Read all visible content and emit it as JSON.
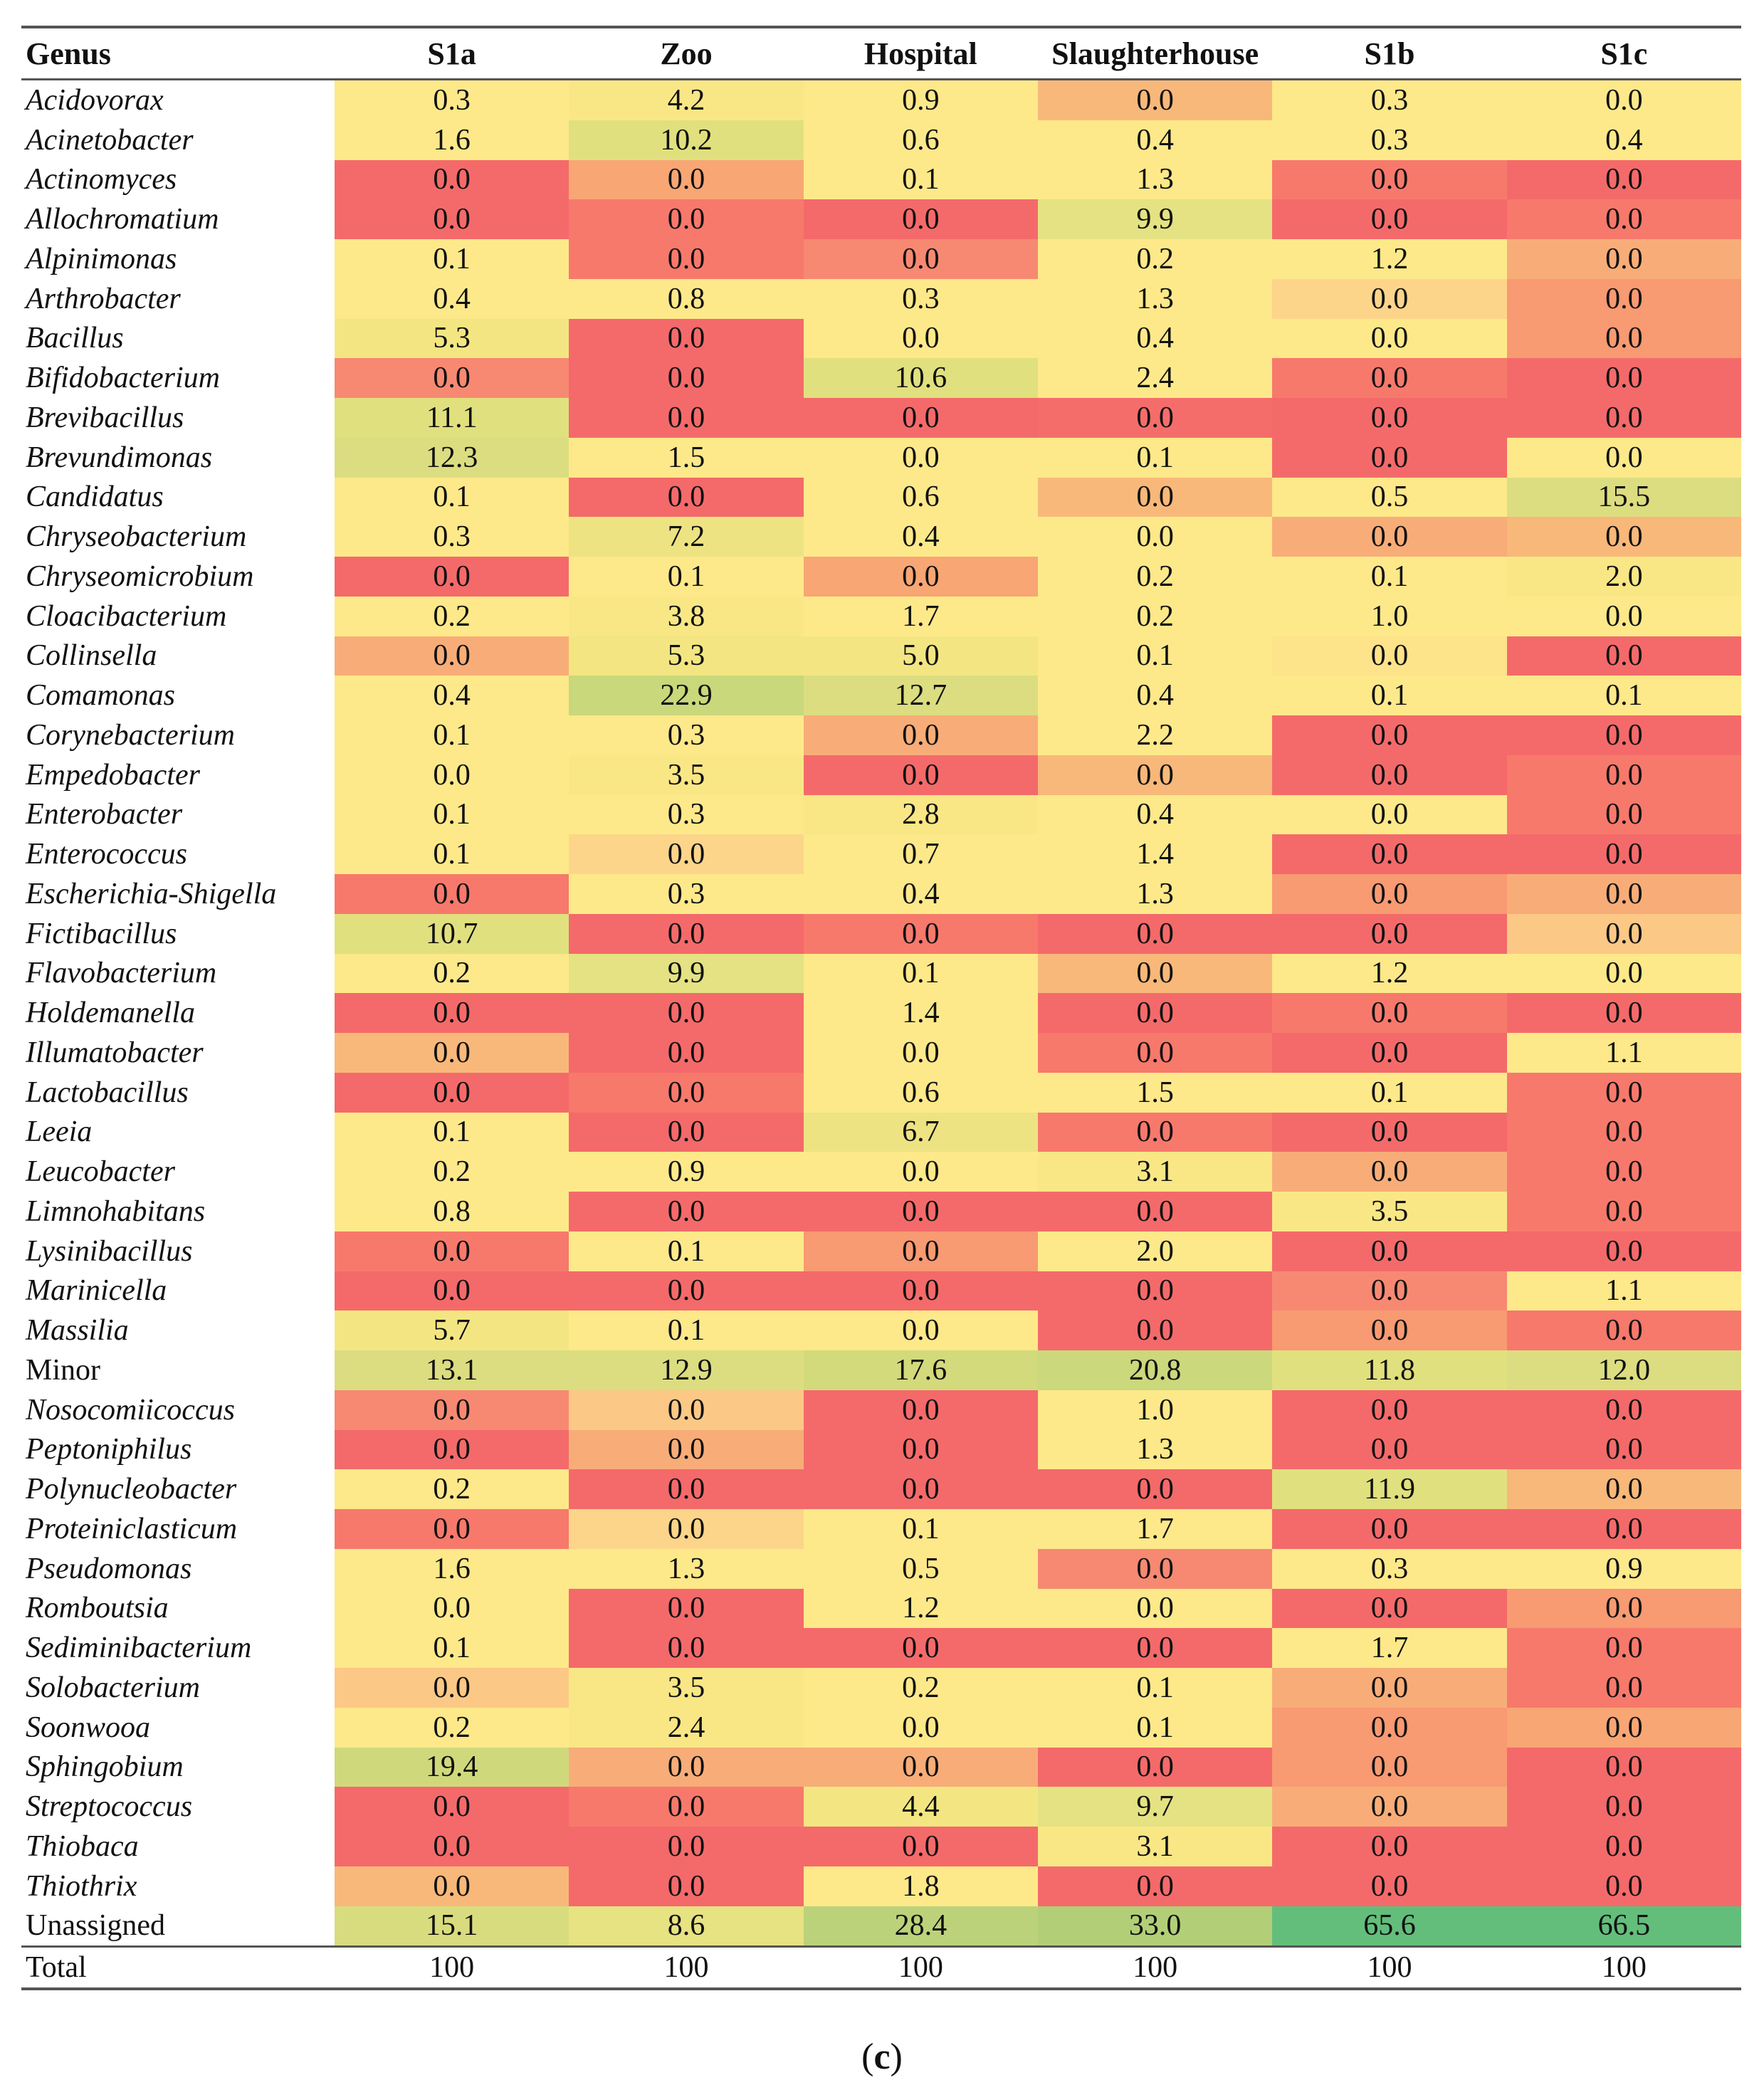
{
  "table": {
    "columns": [
      "Genus",
      "S1a",
      "Zoo",
      "Hospital",
      "Slaughterhouse",
      "S1b",
      "S1c"
    ],
    "rows": [
      {
        "genus": "Acidovorax",
        "italic": true,
        "values": [
          "0.3",
          "4.2",
          "0.9",
          "0.0",
          "0.3",
          "0.0"
        ],
        "colors": [
          "#fde98a",
          "#f9e786",
          "#fde98a",
          "#f8b87a",
          "#fde98a",
          "#fde98a"
        ]
      },
      {
        "genus": "Acinetobacter",
        "italic": true,
        "values": [
          "1.6",
          "10.2",
          "0.6",
          "0.4",
          "0.3",
          "0.4"
        ],
        "colors": [
          "#fde98a",
          "#e1e07e",
          "#fde98a",
          "#fde98a",
          "#fde98a",
          "#fde98a"
        ]
      },
      {
        "genus": "Actinomyces",
        "italic": true,
        "values": [
          "0.0",
          "0.0",
          "0.1",
          "1.3",
          "0.0",
          "0.0"
        ],
        "colors": [
          "#f46a6a",
          "#f8a674",
          "#fde98a",
          "#fde98a",
          "#f7796c",
          "#f46a6a"
        ]
      },
      {
        "genus": "Allochromatium",
        "italic": true,
        "values": [
          "0.0",
          "0.0",
          "0.0",
          "9.9",
          "0.0",
          "0.0"
        ],
        "colors": [
          "#f46a6a",
          "#f7796c",
          "#f46a6a",
          "#e4e282",
          "#f46a6a",
          "#f7796c"
        ]
      },
      {
        "genus": "Alpinimonas",
        "italic": true,
        "values": [
          "0.1",
          "0.0",
          "0.0",
          "0.2",
          "1.2",
          "0.0"
        ],
        "colors": [
          "#fde98a",
          "#f7796c",
          "#f78972",
          "#fde98a",
          "#fde98a",
          "#f8ad78"
        ]
      },
      {
        "genus": "Arthrobacter",
        "italic": true,
        "values": [
          "0.4",
          "0.8",
          "0.3",
          "1.3",
          "0.0",
          "0.0"
        ],
        "colors": [
          "#fde98a",
          "#fde98a",
          "#fde98a",
          "#fde98a",
          "#fcd58a",
          "#f89a72"
        ]
      },
      {
        "genus": "Bacillus",
        "italic": true,
        "values": [
          "5.3",
          "0.0",
          "0.0",
          "0.4",
          "0.0",
          "0.0"
        ],
        "colors": [
          "#f3e682",
          "#f46a6a",
          "#fde98a",
          "#fde98a",
          "#fde98a",
          "#f89a72"
        ]
      },
      {
        "genus": "Bifidobacterium",
        "italic": true,
        "values": [
          "0.0",
          "0.0",
          "10.6",
          "2.4",
          "0.0",
          "0.0"
        ],
        "colors": [
          "#f78972",
          "#f46a6a",
          "#e1e07e",
          "#fde98a",
          "#f7796c",
          "#f46a6a"
        ]
      },
      {
        "genus": "Brevibacillus",
        "italic": true,
        "values": [
          "11.1",
          "0.0",
          "0.0",
          "0.0",
          "0.0",
          "0.0"
        ],
        "colors": [
          "#e1e07e",
          "#f46a6a",
          "#f46a6a",
          "#f56d6a",
          "#f46a6a",
          "#f46a6a"
        ]
      },
      {
        "genus": "Brevundimonas",
        "italic": true,
        "values": [
          "12.3",
          "1.5",
          "0.0",
          "0.1",
          "0.0",
          "0.0"
        ],
        "colors": [
          "#dcdd80",
          "#fde98a",
          "#fde98a",
          "#fde98a",
          "#f46a6a",
          "#fde98a"
        ]
      },
      {
        "genus": "Candidatus",
        "italic": true,
        "values": [
          "0.1",
          "0.0",
          "0.6",
          "0.0",
          "0.5",
          "15.5"
        ],
        "colors": [
          "#fde98a",
          "#f46a6a",
          "#fde98a",
          "#f8b87a",
          "#fde98a",
          "#dcdd80"
        ]
      },
      {
        "genus": "Chryseobacterium",
        "italic": true,
        "values": [
          "0.3",
          "7.2",
          "0.4",
          "0.0",
          "0.0",
          "0.0"
        ],
        "colors": [
          "#fde98a",
          "#eee382",
          "#fde98a",
          "#fde98a",
          "#f8ad78",
          "#f8b87a"
        ]
      },
      {
        "genus": "Chryseomicrobium",
        "italic": true,
        "values": [
          "0.0",
          "0.1",
          "0.0",
          "0.2",
          "0.1",
          "2.0"
        ],
        "colors": [
          "#f46a6a",
          "#fde98a",
          "#f8a674",
          "#fde98a",
          "#fde98a",
          "#f9e786"
        ]
      },
      {
        "genus": "Cloacibacterium",
        "italic": true,
        "values": [
          "0.2",
          "3.8",
          "1.7",
          "0.2",
          "1.0",
          "0.0"
        ],
        "colors": [
          "#fde98a",
          "#f9e786",
          "#fde98a",
          "#fde98a",
          "#fde98a",
          "#fde98a"
        ]
      },
      {
        "genus": "Collinsella",
        "italic": true,
        "values": [
          "0.0",
          "5.3",
          "5.0",
          "0.1",
          "0.0",
          "0.0"
        ],
        "colors": [
          "#f8ad78",
          "#f3e682",
          "#f3e682",
          "#fde98a",
          "#fde38a",
          "#f46a6a"
        ]
      },
      {
        "genus": "Comamonas",
        "italic": true,
        "values": [
          "0.4",
          "22.9",
          "12.7",
          "0.4",
          "0.1",
          "0.1"
        ],
        "colors": [
          "#fde98a",
          "#c9d87a",
          "#dcdd80",
          "#fde98a",
          "#fde98a",
          "#fde98a"
        ]
      },
      {
        "genus": "Corynebacterium",
        "italic": true,
        "values": [
          "0.1",
          "0.3",
          "0.0",
          "2.2",
          "0.0",
          "0.0"
        ],
        "colors": [
          "#fde98a",
          "#fde98a",
          "#f8ad78",
          "#fde98a",
          "#f46a6a",
          "#f46a6a"
        ]
      },
      {
        "genus": "Empedobacter",
        "italic": true,
        "values": [
          "0.0",
          "3.5",
          "0.0",
          "0.0",
          "0.0",
          "0.0"
        ],
        "colors": [
          "#fde98a",
          "#f9e786",
          "#f46a6a",
          "#f8b87a",
          "#f46a6a",
          "#f7796c"
        ]
      },
      {
        "genus": "Enterobacter",
        "italic": true,
        "values": [
          "0.1",
          "0.3",
          "2.8",
          "0.4",
          "0.0",
          "0.0"
        ],
        "colors": [
          "#fde98a",
          "#fde98a",
          "#f9e786",
          "#fde98a",
          "#fde98a",
          "#f7796c"
        ]
      },
      {
        "genus": "Enterococcus",
        "italic": true,
        "values": [
          "0.1",
          "0.0",
          "0.7",
          "1.4",
          "0.0",
          "0.0"
        ],
        "colors": [
          "#fde98a",
          "#fcd58a",
          "#fde98a",
          "#fde98a",
          "#f46a6a",
          "#f46a6a"
        ]
      },
      {
        "genus": "Escherichia-Shigella",
        "italic": true,
        "values": [
          "0.0",
          "0.3",
          "0.4",
          "1.3",
          "0.0",
          "0.0"
        ],
        "colors": [
          "#f7796c",
          "#fde98a",
          "#fde98a",
          "#fde98a",
          "#f89a72",
          "#f8ad78"
        ]
      },
      {
        "genus": "Fictibacillus",
        "italic": true,
        "values": [
          "10.7",
          "0.0",
          "0.0",
          "0.0",
          "0.0",
          "0.0"
        ],
        "colors": [
          "#e1e07e",
          "#f46a6a",
          "#f7796c",
          "#f46a6a",
          "#f46a6a",
          "#fcc886"
        ]
      },
      {
        "genus": "Flavobacterium",
        "italic": true,
        "values": [
          "0.2",
          "9.9",
          "0.1",
          "0.0",
          "1.2",
          "0.0"
        ],
        "colors": [
          "#fde98a",
          "#e4e282",
          "#fde98a",
          "#f8b87a",
          "#fde98a",
          "#fde98a"
        ]
      },
      {
        "genus": "Holdemanella",
        "italic": true,
        "values": [
          "0.0",
          "0.0",
          "1.4",
          "0.0",
          "0.0",
          "0.0"
        ],
        "colors": [
          "#f46a6a",
          "#f46a6a",
          "#fde98a",
          "#f46a6a",
          "#f7796c",
          "#f46a6a"
        ]
      },
      {
        "genus": "Illumatobacter",
        "italic": true,
        "values": [
          "0.0",
          "0.0",
          "0.0",
          "0.0",
          "0.0",
          "1.1"
        ],
        "colors": [
          "#f8b87a",
          "#f46a6a",
          "#fde98a",
          "#f7796c",
          "#f46a6a",
          "#fde98a"
        ]
      },
      {
        "genus": "Lactobacillus",
        "italic": true,
        "values": [
          "0.0",
          "0.0",
          "0.6",
          "1.5",
          "0.1",
          "0.0"
        ],
        "colors": [
          "#f46a6a",
          "#f7796c",
          "#fde98a",
          "#fde98a",
          "#fde98a",
          "#f7796c"
        ]
      },
      {
        "genus": "Leeia",
        "italic": true,
        "values": [
          "0.1",
          "0.0",
          "6.7",
          "0.0",
          "0.0",
          "0.0"
        ],
        "colors": [
          "#fde98a",
          "#f46a6a",
          "#eee382",
          "#f7796c",
          "#f46a6a",
          "#f7796c"
        ]
      },
      {
        "genus": "Leucobacter",
        "italic": true,
        "values": [
          "0.2",
          "0.9",
          "0.0",
          "3.1",
          "0.0",
          "0.0"
        ],
        "colors": [
          "#fde98a",
          "#fde98a",
          "#fde98a",
          "#f9e786",
          "#f8ad78",
          "#f7796c"
        ]
      },
      {
        "genus": "Limnohabitans",
        "italic": true,
        "values": [
          "0.8",
          "0.0",
          "0.0",
          "0.0",
          "3.5",
          "0.0"
        ],
        "colors": [
          "#fde98a",
          "#f46a6a",
          "#f46a6a",
          "#f46a6a",
          "#f9e786",
          "#f7796c"
        ]
      },
      {
        "genus": "Lysinibacillus",
        "italic": true,
        "values": [
          "0.0",
          "0.1",
          "0.0",
          "2.0",
          "0.0",
          "0.0"
        ],
        "colors": [
          "#f7796c",
          "#fde98a",
          "#f89a72",
          "#fde98a",
          "#f46a6a",
          "#f46a6a"
        ]
      },
      {
        "genus": "Marinicella",
        "italic": true,
        "values": [
          "0.0",
          "0.0",
          "0.0",
          "0.0",
          "0.0",
          "1.1"
        ],
        "colors": [
          "#f46a6a",
          "#f46a6a",
          "#f46a6a",
          "#f46a6a",
          "#f78972",
          "#fde98a"
        ]
      },
      {
        "genus": "Massilia",
        "italic": true,
        "values": [
          "5.7",
          "0.1",
          "0.0",
          "0.0",
          "0.0",
          "0.0"
        ],
        "colors": [
          "#f3e682",
          "#fde98a",
          "#fde98a",
          "#f46a6a",
          "#f89a72",
          "#f7796c"
        ]
      },
      {
        "genus": "Minor",
        "italic": false,
        "values": [
          "13.1",
          "12.9",
          "17.6",
          "20.8",
          "11.8",
          "12.0"
        ],
        "colors": [
          "#dcdd80",
          "#dcdd80",
          "#d3da7c",
          "#cbd87c",
          "#e1e07e",
          "#dcdd80"
        ]
      },
      {
        "genus": "Nosocomiicoccus",
        "italic": true,
        "values": [
          "0.0",
          "0.0",
          "0.0",
          "1.0",
          "0.0",
          "0.0"
        ],
        "colors": [
          "#f78972",
          "#fcc886",
          "#f46a6a",
          "#fde98a",
          "#f46a6a",
          "#f46a6a"
        ]
      },
      {
        "genus": "Peptoniphilus",
        "italic": true,
        "values": [
          "0.0",
          "0.0",
          "0.0",
          "1.3",
          "0.0",
          "0.0"
        ],
        "colors": [
          "#f46a6a",
          "#f8ad78",
          "#f46a6a",
          "#fde98a",
          "#f46a6a",
          "#f46a6a"
        ]
      },
      {
        "genus": "Polynucleobacter",
        "italic": true,
        "values": [
          "0.2",
          "0.0",
          "0.0",
          "0.0",
          "11.9",
          "0.0"
        ],
        "colors": [
          "#fde98a",
          "#f46a6a",
          "#f46a6a",
          "#f46a6a",
          "#e1e07e",
          "#f8b87a"
        ]
      },
      {
        "genus": "Proteiniclasticum",
        "italic": true,
        "values": [
          "0.0",
          "0.0",
          "0.1",
          "1.7",
          "0.0",
          "0.0"
        ],
        "colors": [
          "#f7796c",
          "#fcd58a",
          "#fde98a",
          "#fde98a",
          "#f46a6a",
          "#f46a6a"
        ]
      },
      {
        "genus": "Pseudomonas",
        "italic": true,
        "values": [
          "1.6",
          "1.3",
          "0.5",
          "0.0",
          "0.3",
          "0.9"
        ],
        "colors": [
          "#fde98a",
          "#fde98a",
          "#fde98a",
          "#f78972",
          "#fde98a",
          "#fde98a"
        ]
      },
      {
        "genus": "Romboutsia",
        "italic": true,
        "values": [
          "0.0",
          "0.0",
          "1.2",
          "0.0",
          "0.0",
          "0.0"
        ],
        "colors": [
          "#fde98a",
          "#f46a6a",
          "#fde98a",
          "#fde98a",
          "#f46a6a",
          "#f89a72"
        ]
      },
      {
        "genus": "Sediminibacterium",
        "italic": true,
        "values": [
          "0.1",
          "0.0",
          "0.0",
          "0.0",
          "1.7",
          "0.0"
        ],
        "colors": [
          "#fde98a",
          "#f46a6a",
          "#f46a6a",
          "#f46a6a",
          "#fde98a",
          "#f7796c"
        ]
      },
      {
        "genus": "Solobacterium",
        "italic": true,
        "values": [
          "0.0",
          "3.5",
          "0.2",
          "0.1",
          "0.0",
          "0.0"
        ],
        "colors": [
          "#fcc886",
          "#f9e786",
          "#fde98a",
          "#fde98a",
          "#f8ad78",
          "#f7796c"
        ]
      },
      {
        "genus": "Soonwooa",
        "italic": true,
        "values": [
          "0.2",
          "2.4",
          "0.0",
          "0.1",
          "0.0",
          "0.0"
        ],
        "colors": [
          "#fde98a",
          "#f9e786",
          "#fde98a",
          "#fde98a",
          "#f89a72",
          "#f8a674"
        ]
      },
      {
        "genus": "Sphingobium",
        "italic": true,
        "values": [
          "19.4",
          "0.0",
          "0.0",
          "0.0",
          "0.0",
          "0.0"
        ],
        "colors": [
          "#cfd97c",
          "#f8ad78",
          "#f8ad78",
          "#f46a6a",
          "#f89a72",
          "#f46a6a"
        ]
      },
      {
        "genus": "Streptococcus",
        "italic": true,
        "values": [
          "0.0",
          "0.0",
          "4.4",
          "9.7",
          "0.0",
          "0.0"
        ],
        "colors": [
          "#f46a6a",
          "#f7796c",
          "#f3e682",
          "#e4e282",
          "#f8ad78",
          "#f46a6a"
        ]
      },
      {
        "genus": "Thiobaca",
        "italic": true,
        "values": [
          "0.0",
          "0.0",
          "0.0",
          "3.1",
          "0.0",
          "0.0"
        ],
        "colors": [
          "#f46a6a",
          "#f46a6a",
          "#f46a6a",
          "#f9e786",
          "#f46a6a",
          "#f46a6a"
        ]
      },
      {
        "genus": "Thiothrix",
        "italic": true,
        "values": [
          "0.0",
          "0.0",
          "1.8",
          "0.0",
          "0.0",
          "0.0"
        ],
        "colors": [
          "#f8b87a",
          "#f46a6a",
          "#fde98a",
          "#f46a6a",
          "#f46a6a",
          "#f46a6a"
        ]
      },
      {
        "genus": "Unassigned",
        "italic": false,
        "values": [
          "15.1",
          "8.6",
          "28.4",
          "33.0",
          "65.6",
          "66.5"
        ],
        "colors": [
          "#d8dc7e",
          "#e7e282",
          "#bcd27a",
          "#b2cf78",
          "#63be7b",
          "#63be7b"
        ]
      }
    ],
    "total": {
      "label": "Total",
      "values": [
        "100",
        "100",
        "100",
        "100",
        "100",
        "100"
      ]
    }
  },
  "caption": {
    "open": "(",
    "letter": "c",
    "close": ")"
  }
}
